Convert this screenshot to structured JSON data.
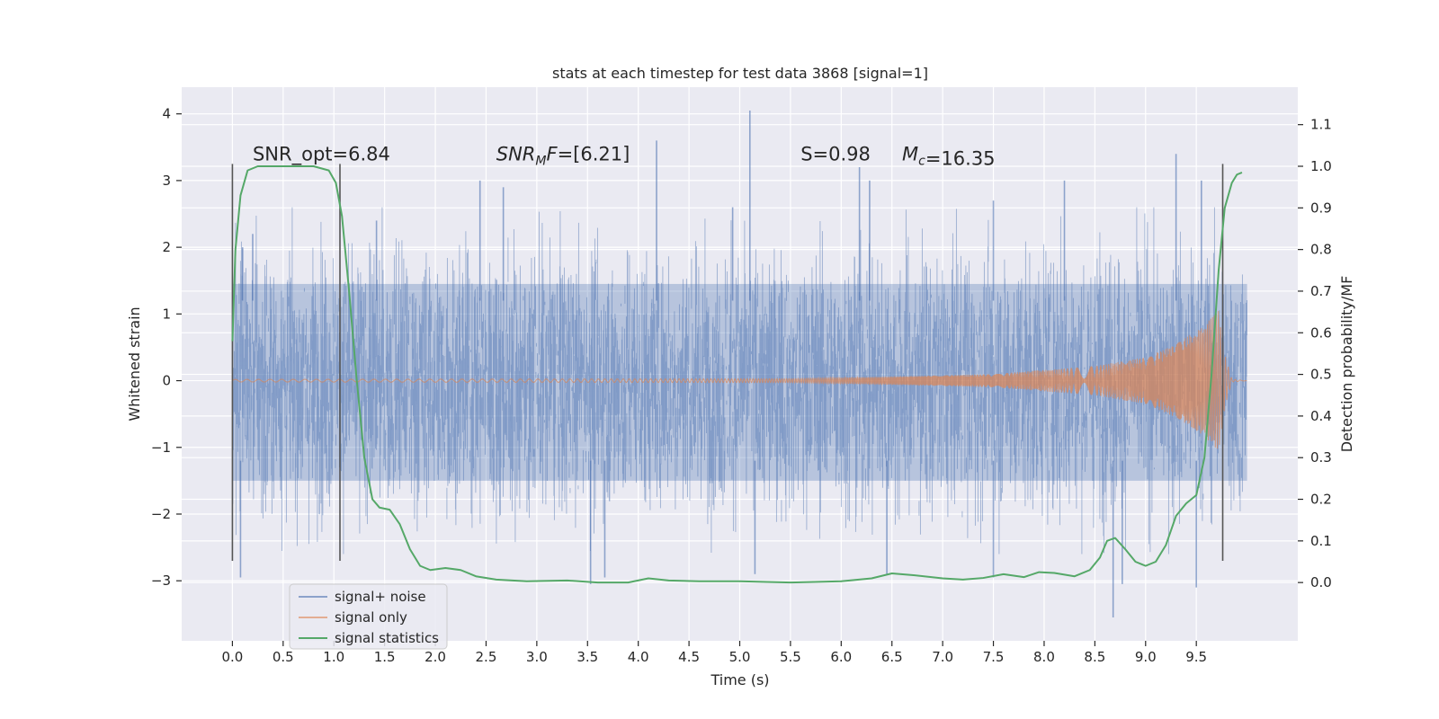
{
  "chart_data": {
    "type": "line",
    "title": "stats at each timestep for test data 3868 [signal=1]",
    "xlabel": "Time (s)",
    "ylabel": "Whitened strain",
    "y2label": "Detection probability/MF",
    "xlim": [
      -0.5,
      10.5
    ],
    "ylim": [
      -3.9,
      4.4
    ],
    "y2lim": [
      -0.14,
      1.19
    ],
    "x_ticks": [
      "0.0",
      "0.5",
      "1.0",
      "1.5",
      "2.0",
      "2.5",
      "3.0",
      "3.5",
      "4.0",
      "4.5",
      "5.0",
      "5.5",
      "6.0",
      "6.5",
      "7.0",
      "7.5",
      "8.0",
      "8.5",
      "9.0",
      "9.5"
    ],
    "x_tick_values": [
      0,
      0.5,
      1,
      1.5,
      2,
      2.5,
      3,
      3.5,
      4,
      4.5,
      5,
      5.5,
      6,
      6.5,
      7,
      7.5,
      8,
      8.5,
      9,
      9.5
    ],
    "y_ticks": [
      "−3",
      "−2",
      "−1",
      "0",
      "1",
      "2",
      "3",
      "4"
    ],
    "y_tick_values": [
      -3,
      -2,
      -1,
      0,
      1,
      2,
      3,
      4
    ],
    "y2_ticks": [
      "0.0",
      "0.1",
      "0.2",
      "0.3",
      "0.4",
      "0.5",
      "0.6",
      "0.7",
      "0.8",
      "0.9",
      "1.0",
      "1.1"
    ],
    "y2_tick_values": [
      0,
      0.1,
      0.2,
      0.3,
      0.4,
      0.5,
      0.6,
      0.7,
      0.8,
      0.9,
      1.0,
      1.1
    ],
    "grid": true,
    "legend_position": "lower-left",
    "background_color": "#eaeaf2",
    "annotations": [
      {
        "text": "SNR_opt=6.84",
        "x": 0.2,
        "y": 3.3
      },
      {
        "text": "SNR_MF=[6.21]",
        "x": 2.6,
        "y": 3.3
      },
      {
        "text": "S=0.98",
        "x": 5.6,
        "y": 3.3
      },
      {
        "text": "M_c=16.35",
        "x": 6.6,
        "y": 3.3
      }
    ],
    "vertical_lines": [
      0.0,
      1.06,
      9.76
    ],
    "series": [
      {
        "name": "signal+ noise",
        "axis": "left",
        "color": "#4c72b0",
        "style": "dense-noise",
        "x_range": [
          0,
          10
        ],
        "band_core": [
          -1.5,
          1.45
        ],
        "peaks": [
          {
            "x": 0.1,
            "y": 2.0
          },
          {
            "x": 0.2,
            "y": 2.2
          },
          {
            "x": 1.42,
            "y": 2.4
          },
          {
            "x": 2.44,
            "y": 3.0
          },
          {
            "x": 2.67,
            "y": 2.9
          },
          {
            "x": 4.18,
            "y": 3.6
          },
          {
            "x": 4.93,
            "y": 2.6
          },
          {
            "x": 5.1,
            "y": 4.05
          },
          {
            "x": 6.18,
            "y": 3.2
          },
          {
            "x": 6.28,
            "y": 3.0
          },
          {
            "x": 7.5,
            "y": 2.7
          },
          {
            "x": 8.2,
            "y": 3.0
          },
          {
            "x": 9.3,
            "y": 3.4
          },
          {
            "x": 9.55,
            "y": 3.0
          }
        ],
        "troughs": [
          {
            "x": 0.08,
            "y": -2.95
          },
          {
            "x": 3.53,
            "y": -3.05
          },
          {
            "x": 3.67,
            "y": -2.95
          },
          {
            "x": 5.15,
            "y": -2.9
          },
          {
            "x": 6.45,
            "y": -2.9
          },
          {
            "x": 7.5,
            "y": -2.95
          },
          {
            "x": 8.68,
            "y": -3.55
          },
          {
            "x": 8.77,
            "y": -3.05
          },
          {
            "x": 9.5,
            "y": -3.1
          }
        ]
      },
      {
        "name": "signal only",
        "axis": "left",
        "color": "#dd8452",
        "style": "chirp",
        "envelope": [
          {
            "x": 0,
            "y": 0.02
          },
          {
            "x": 5.5,
            "y": 0.03
          },
          {
            "x": 6.5,
            "y": 0.06
          },
          {
            "x": 7.5,
            "y": 0.1
          },
          {
            "x": 8.5,
            "y": 0.22
          },
          {
            "x": 9.0,
            "y": 0.35
          },
          {
            "x": 9.3,
            "y": 0.55
          },
          {
            "x": 9.55,
            "y": 0.8
          },
          {
            "x": 9.72,
            "y": 1.05
          },
          {
            "x": 9.78,
            "y": 0.4
          },
          {
            "x": 9.85,
            "y": 0.02
          },
          {
            "x": 10.0,
            "y": 0.0
          }
        ]
      },
      {
        "name": "signal statistics",
        "axis": "right",
        "color": "#55a868",
        "x": [
          0,
          0.03,
          0.08,
          0.15,
          0.25,
          0.4,
          0.6,
          0.8,
          0.95,
          1.02,
          1.08,
          1.15,
          1.22,
          1.3,
          1.38,
          1.45,
          1.55,
          1.65,
          1.75,
          1.85,
          1.95,
          2.1,
          2.25,
          2.4,
          2.6,
          2.9,
          3.3,
          3.6,
          3.9,
          4.1,
          4.3,
          4.6,
          5.0,
          5.5,
          6.0,
          6.3,
          6.5,
          6.7,
          7.0,
          7.2,
          7.4,
          7.6,
          7.8,
          7.95,
          8.1,
          8.3,
          8.45,
          8.55,
          8.62,
          8.7,
          8.8,
          8.9,
          9.0,
          9.1,
          9.2,
          9.3,
          9.4,
          9.5,
          9.58,
          9.65,
          9.72,
          9.78,
          9.85,
          9.9,
          9.95
        ],
        "y": [
          0.58,
          0.8,
          0.93,
          0.99,
          1.0,
          1.0,
          1.0,
          1.0,
          0.99,
          0.96,
          0.88,
          0.7,
          0.5,
          0.3,
          0.2,
          0.18,
          0.175,
          0.14,
          0.08,
          0.04,
          0.03,
          0.035,
          0.03,
          0.015,
          0.007,
          0.003,
          0.005,
          0.0,
          0.0,
          0.01,
          0.005,
          0.003,
          0.003,
          0.0,
          0.003,
          0.01,
          0.022,
          0.018,
          0.01,
          0.007,
          0.011,
          0.02,
          0.013,
          0.025,
          0.023,
          0.015,
          0.03,
          0.06,
          0.1,
          0.107,
          0.08,
          0.05,
          0.04,
          0.05,
          0.09,
          0.16,
          0.19,
          0.21,
          0.3,
          0.5,
          0.75,
          0.9,
          0.96,
          0.98,
          0.985
        ]
      }
    ]
  }
}
